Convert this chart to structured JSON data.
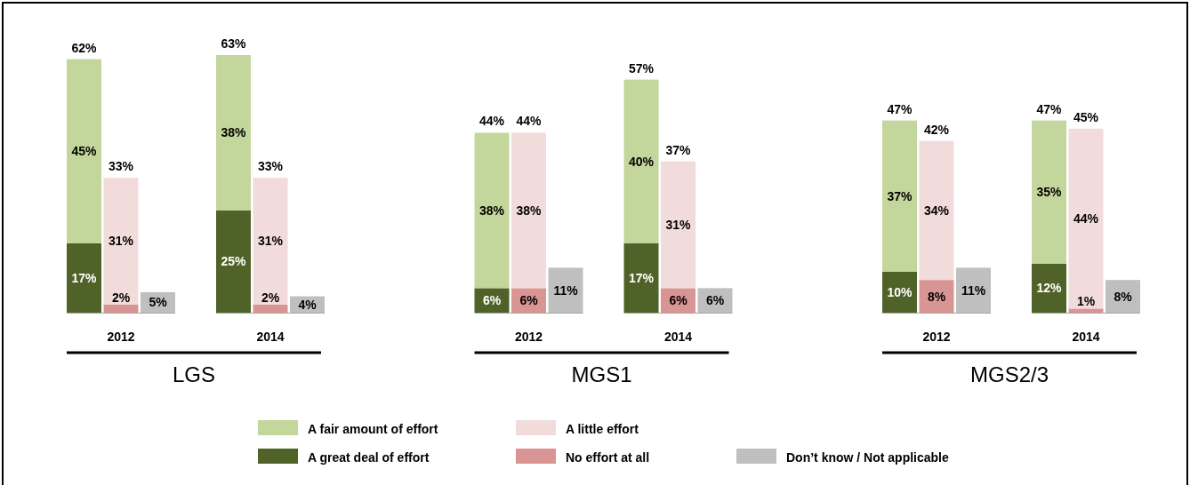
{
  "chart_data": [
    {
      "type": "bar",
      "stacked": true,
      "xlabel": "LGS",
      "legend": "bottom",
      "categories": [
        null,
        "2012",
        null,
        null,
        "2014",
        null
      ],
      "series": [
        {
          "name": "A great deal of effort",
          "color": "#4f6228",
          "values": [
            17,
            null,
            null,
            25,
            null,
            null
          ],
          "value_labels": [
            "17%",
            null,
            null,
            "25%",
            null,
            null
          ]
        },
        {
          "name": "A fair amount of effort",
          "color": "#c3d69b",
          "values": [
            45,
            null,
            null,
            38,
            null,
            null
          ],
          "value_labels": [
            "45%",
            null,
            null,
            "38%",
            null,
            null
          ]
        },
        {
          "name": "No effort at all",
          "color": "#d99594",
          "values": [
            null,
            2,
            null,
            null,
            2,
            null
          ],
          "value_labels": [
            null,
            "2%",
            null,
            null,
            "2%",
            null
          ]
        },
        {
          "name": "A little effort",
          "color": "#f2dcdb",
          "values": [
            null,
            31,
            null,
            null,
            31,
            null
          ],
          "value_labels": [
            null,
            "31%",
            null,
            null,
            "31%",
            null
          ]
        },
        {
          "name": "Don’t know / Not applicable",
          "color": "#bfbfbf",
          "values": [
            null,
            null,
            5,
            null,
            null,
            4
          ],
          "value_labels": [
            null,
            null,
            "5%",
            null,
            null,
            "4%"
          ]
        }
      ],
      "totals": [
        "62%",
        "33%",
        null,
        "63%",
        "33%",
        null
      ]
    },
    {
      "type": "bar",
      "stacked": true,
      "xlabel": "MGS1",
      "categories": [
        null,
        "2012",
        null,
        null,
        "2014",
        null
      ],
      "series": [
        {
          "color": "#4f6228",
          "values": [
            6,
            null,
            null,
            17,
            null,
            null
          ],
          "value_labels": [
            "6%",
            null,
            null,
            "17%",
            null,
            null
          ]
        },
        {
          "color": "#c3d69b",
          "values": [
            38,
            null,
            null,
            40,
            null,
            null
          ],
          "value_labels": [
            "38%",
            null,
            null,
            "40%",
            null,
            null
          ]
        },
        {
          "color": "#d99594",
          "values": [
            null,
            6,
            null,
            null,
            6,
            null
          ],
          "value_labels": [
            null,
            "6%",
            null,
            null,
            "6%",
            null
          ]
        },
        {
          "color": "#f2dcdb",
          "values": [
            null,
            38,
            null,
            null,
            31,
            null
          ],
          "value_labels": [
            null,
            "38%",
            null,
            null,
            "31%",
            null
          ]
        },
        {
          "color": "#bfbfbf",
          "values": [
            null,
            null,
            11,
            null,
            null,
            6
          ],
          "value_labels": [
            null,
            null,
            "11%",
            null,
            null,
            "6%"
          ]
        }
      ],
      "totals": [
        "44%",
        "44%",
        null,
        "57%",
        "37%",
        null
      ]
    },
    {
      "type": "bar",
      "stacked": true,
      "xlabel": "MGS2/3",
      "categories": [
        null,
        "2012",
        null,
        null,
        "2014",
        null
      ],
      "series": [
        {
          "color": "#4f6228",
          "values": [
            10,
            null,
            null,
            12,
            null,
            null
          ],
          "value_labels": [
            "10%",
            null,
            null,
            "12%",
            null,
            null
          ]
        },
        {
          "color": "#c3d69b",
          "values": [
            37,
            null,
            null,
            35,
            null,
            null
          ],
          "value_labels": [
            "37%",
            null,
            null,
            "35%",
            null,
            null
          ]
        },
        {
          "color": "#d99594",
          "values": [
            null,
            8,
            null,
            null,
            1,
            null
          ],
          "value_labels": [
            null,
            "8%",
            null,
            null,
            "1%",
            null
          ]
        },
        {
          "color": "#f2dcdb",
          "values": [
            null,
            34,
            null,
            null,
            44,
            null
          ],
          "value_labels": [
            null,
            "34%",
            null,
            null,
            "44%",
            null
          ]
        },
        {
          "color": "#bfbfbf",
          "values": [
            null,
            null,
            11,
            null,
            null,
            8
          ],
          "value_labels": [
            null,
            null,
            "11%",
            null,
            null,
            "8%"
          ]
        }
      ],
      "totals": [
        "47%",
        "42%",
        null,
        "47%",
        "45%",
        null
      ]
    }
  ]
}
